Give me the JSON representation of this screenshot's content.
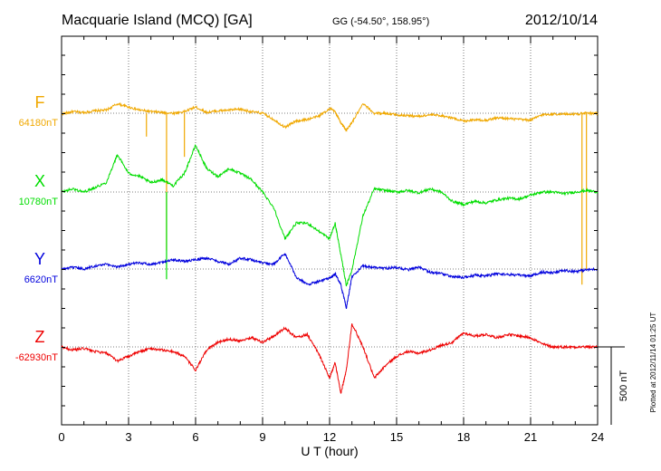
{
  "header": {
    "station": "Macquarie Island (MCQ)  [GA]",
    "coords": "GG (-54.50°, 158.95°)",
    "date": "2012/10/14"
  },
  "footer": {
    "plotted": "Plotted at 2012/11/14 01:25 UT"
  },
  "scale_bar": {
    "label": "500 nT",
    "value_nT": 500
  },
  "chart_data": {
    "type": "line",
    "title": "Macquarie Island (MCQ)  [GA]",
    "xlabel": "U T (hour)",
    "ylabel": "",
    "xlim": [
      0,
      24
    ],
    "x_ticks": [
      "0",
      "3",
      "6",
      "9",
      "12",
      "15",
      "18",
      "21",
      "24"
    ],
    "grid": true,
    "series": [
      {
        "name": "F",
        "baseline_label": "64180nT",
        "color": "#f0a800",
        "x": [
          0,
          0.5,
          1,
          1.5,
          2,
          2.5,
          3,
          3.5,
          4,
          4.5,
          5,
          5.5,
          6,
          6.5,
          7,
          7.5,
          8,
          8.5,
          9,
          9.5,
          10,
          10.5,
          11,
          11.5,
          12,
          12.25,
          12.5,
          12.75,
          13,
          13.5,
          14,
          14.5,
          15,
          15.5,
          16,
          16.5,
          17,
          17.5,
          18,
          18.5,
          19,
          19.5,
          20,
          20.5,
          21,
          21.5,
          22,
          22.5,
          23,
          23.5,
          24
        ],
        "values": [
          -5,
          10,
          5,
          15,
          20,
          60,
          40,
          20,
          10,
          5,
          0,
          10,
          40,
          5,
          15,
          20,
          25,
          10,
          0,
          -40,
          -90,
          -50,
          -40,
          -20,
          30,
          10,
          -60,
          -110,
          -60,
          60,
          0,
          0,
          -10,
          -15,
          -20,
          -10,
          -15,
          -30,
          -50,
          -40,
          -45,
          -30,
          -35,
          -40,
          -45,
          -10,
          -5,
          -5,
          -5,
          0,
          0
        ],
        "spikes": [
          {
            "x": 3.8,
            "values": [
              -150
            ]
          },
          {
            "x": 4.7,
            "values": [
              -880
            ]
          },
          {
            "x": 5.5,
            "values": [
              -280
            ]
          },
          {
            "x": 23.3,
            "values": [
              -1100
            ]
          },
          {
            "x": 23.5,
            "values": [
              -1000
            ]
          }
        ]
      },
      {
        "name": "X",
        "baseline_label": "10780nT",
        "color": "#00dd00",
        "x": [
          0,
          0.5,
          1,
          1.5,
          2,
          2.5,
          3,
          3.5,
          4,
          4.5,
          5,
          5.5,
          6,
          6.5,
          7,
          7.5,
          8,
          8.5,
          9,
          9.5,
          10,
          10.5,
          11,
          11.5,
          12,
          12.25,
          12.5,
          12.75,
          13,
          13.5,
          14,
          14.5,
          15,
          15.5,
          16,
          16.5,
          17,
          17.5,
          18,
          18.5,
          19,
          19.5,
          20,
          20.5,
          21,
          21.5,
          22,
          22.5,
          23,
          23.5,
          24
        ],
        "values": [
          0,
          20,
          0,
          30,
          60,
          240,
          120,
          100,
          60,
          80,
          40,
          120,
          300,
          150,
          100,
          150,
          120,
          80,
          0,
          -100,
          -300,
          -200,
          -200,
          -250,
          -300,
          -200,
          -400,
          -600,
          -500,
          -150,
          20,
          10,
          0,
          10,
          -5,
          20,
          0,
          -60,
          -80,
          -60,
          -70,
          -50,
          -40,
          -45,
          -20,
          0,
          0,
          -10,
          0,
          10,
          0
        ],
        "spikes": [
          {
            "x": 4.7,
            "values": [
              -560
            ]
          }
        ]
      },
      {
        "name": "Y",
        "baseline_label": "6620nT",
        "color": "#0000dd",
        "x": [
          0,
          0.5,
          1,
          1.5,
          2,
          2.5,
          3,
          3.5,
          4,
          4.5,
          5,
          5.5,
          6,
          6.5,
          7,
          7.5,
          8,
          8.5,
          9,
          9.5,
          10,
          10.5,
          11,
          11.5,
          12,
          12.25,
          12.5,
          12.75,
          13,
          13.5,
          14,
          14.5,
          15,
          15.5,
          16,
          16.5,
          17,
          17.5,
          18,
          18.5,
          19,
          19.5,
          20,
          20.5,
          21,
          21.5,
          22,
          22.5,
          23,
          23.5,
          24
        ],
        "values": [
          0,
          10,
          0,
          20,
          30,
          15,
          30,
          40,
          30,
          45,
          60,
          50,
          60,
          70,
          50,
          30,
          70,
          60,
          40,
          30,
          100,
          -50,
          -100,
          -80,
          -60,
          -30,
          -100,
          -250,
          -50,
          20,
          10,
          5,
          10,
          -5,
          10,
          -20,
          -30,
          -50,
          -55,
          -40,
          -45,
          -30,
          -35,
          -40,
          -45,
          -20,
          -25,
          -10,
          -15,
          -5,
          0
        ]
      },
      {
        "name": "Z",
        "baseline_label": "-62930nT",
        "color": "#ee0000",
        "x": [
          0,
          0.5,
          1,
          1.5,
          2,
          2.5,
          3,
          3.5,
          4,
          4.5,
          5,
          5.5,
          6,
          6.5,
          7,
          7.5,
          8,
          8.5,
          9,
          9.5,
          10,
          10.5,
          11,
          11.5,
          12,
          12.25,
          12.5,
          12.75,
          13,
          13.5,
          14,
          14.5,
          15,
          15.5,
          16,
          16.5,
          17,
          17.5,
          18,
          18.5,
          19,
          19.5,
          20,
          20.5,
          21,
          21.5,
          22,
          22.5,
          23,
          23.5,
          24
        ],
        "values": [
          0,
          -20,
          -10,
          -30,
          -40,
          -90,
          -60,
          -30,
          -10,
          -20,
          -30,
          -60,
          -150,
          -20,
          30,
          50,
          40,
          60,
          30,
          70,
          120,
          60,
          80,
          -40,
          -200,
          -100,
          -300,
          -150,
          150,
          0,
          -200,
          -120,
          -60,
          -30,
          -40,
          -20,
          10,
          30,
          90,
          70,
          80,
          60,
          80,
          70,
          60,
          20,
          0,
          0,
          0,
          0,
          0
        ]
      }
    ]
  }
}
